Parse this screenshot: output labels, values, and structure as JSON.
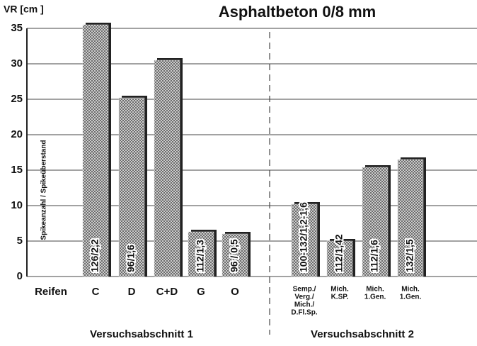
{
  "chart_data": {
    "type": "bar",
    "title": "Asphaltbeton 0/8 mm",
    "y_label": "VR [cm ]",
    "rotated_label": "Spikeanzahl / Spikeüberstand",
    "categories": [
      [
        "Reifen"
      ],
      [
        "C"
      ],
      [
        "D"
      ],
      [
        "C+D"
      ],
      [
        "G"
      ],
      [
        "O"
      ],
      [
        "Semp./",
        "Verg./",
        "Mich./",
        "D.Fl.Sp."
      ],
      [
        "Mich.",
        "K.SP."
      ],
      [
        "Mich.",
        "1.Gen."
      ],
      [
        "Mich.",
        "1.Gen."
      ]
    ],
    "values": [
      null,
      35.5,
      25.2,
      30.5,
      6.3,
      6,
      10.2,
      5,
      15.4,
      16.5
    ],
    "bar_labels": [
      null,
      "126/2,2",
      "96/1,6",
      null,
      "112/1,3",
      "96 / 0,5",
      "100-132/1,2-1,6",
      "112/1,42",
      "112/1,6",
      "132/1,5"
    ],
    "groups": [
      "Versuchsabschnitt 1",
      "Versuchsabschnitt 2"
    ],
    "ylim": [
      0,
      35
    ],
    "yticks": [
      0,
      5,
      10,
      15,
      20,
      25,
      30,
      35
    ],
    "grid": true,
    "color": "#d8d8d8"
  }
}
